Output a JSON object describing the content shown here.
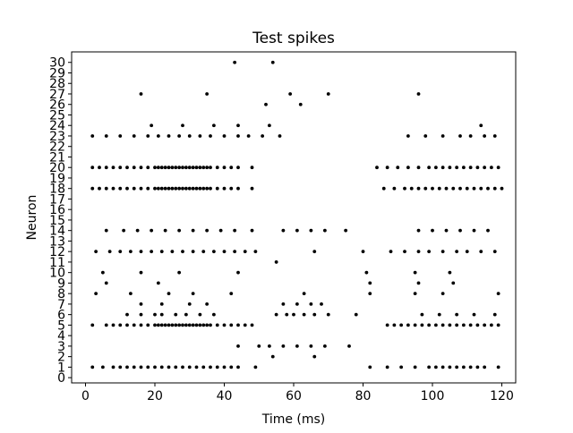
{
  "chart_data": {
    "type": "scatter",
    "title": "Test spikes",
    "xlabel": "Time (ms)",
    "ylabel": "Neuron",
    "xlim": [
      -4,
      124
    ],
    "ylim": [
      -0.5,
      31.0
    ],
    "xticks": [
      0,
      20,
      40,
      60,
      80,
      100,
      120
    ],
    "yticks": [
      0,
      1,
      2,
      3,
      4,
      5,
      6,
      7,
      8,
      9,
      10,
      11,
      12,
      13,
      14,
      15,
      16,
      17,
      18,
      19,
      20,
      21,
      22,
      23,
      24,
      25,
      26,
      27,
      28,
      29,
      30
    ],
    "grid": false,
    "legend": "none",
    "marker_color": "#000000",
    "series": [
      {
        "neuron": 1,
        "times": [
          2,
          5,
          8,
          10,
          12,
          14,
          16,
          18,
          20,
          22,
          24,
          26,
          28,
          30,
          32,
          34,
          36,
          38,
          40,
          42,
          44,
          49,
          95,
          99,
          101,
          103,
          105,
          107,
          109,
          111,
          113,
          115,
          119,
          82,
          87,
          91
        ]
      },
      {
        "neuron": 2,
        "times": [
          54,
          66
        ]
      },
      {
        "neuron": 3,
        "times": [
          44,
          50,
          53,
          57,
          61,
          65,
          69,
          76
        ]
      },
      {
        "neuron": 5,
        "times": [
          2,
          6,
          8,
          10,
          12,
          14,
          16,
          18,
          20,
          21,
          22,
          23,
          24,
          25,
          26,
          27,
          28,
          29,
          30,
          31,
          32,
          33,
          34,
          35,
          36,
          38,
          40,
          42,
          44,
          46,
          48,
          87,
          89,
          91,
          93,
          95,
          97,
          99,
          101,
          103,
          105,
          107,
          109,
          111,
          113,
          115,
          117,
          119
        ]
      },
      {
        "neuron": 6,
        "times": [
          12,
          16,
          20,
          22,
          26,
          29,
          33,
          37,
          55,
          58,
          60,
          63,
          66,
          70,
          78,
          97,
          102,
          107,
          112,
          118
        ]
      },
      {
        "neuron": 7,
        "times": [
          16,
          22,
          30,
          35,
          57,
          61,
          65,
          68
        ]
      },
      {
        "neuron": 8,
        "times": [
          3,
          13,
          24,
          31,
          42,
          63,
          82,
          95,
          103,
          119
        ]
      },
      {
        "neuron": 9,
        "times": [
          6,
          21,
          82,
          96,
          106
        ]
      },
      {
        "neuron": 10,
        "times": [
          5,
          16,
          27,
          44,
          81,
          95,
          105
        ]
      },
      {
        "neuron": 11,
        "times": [
          55
        ]
      },
      {
        "neuron": 12,
        "times": [
          3,
          7,
          10,
          13,
          16,
          19,
          22,
          25,
          28,
          31,
          34,
          37,
          40,
          43,
          46,
          49,
          66,
          80,
          88,
          92,
          96,
          99,
          103,
          107,
          110,
          114,
          118
        ]
      },
      {
        "neuron": 14,
        "times": [
          6,
          11,
          15,
          19,
          23,
          27,
          31,
          35,
          39,
          43,
          48,
          57,
          61,
          65,
          69,
          75,
          96,
          100,
          104,
          108,
          112,
          116
        ]
      },
      {
        "neuron": 18,
        "times": [
          2,
          4,
          6,
          8,
          10,
          12,
          14,
          16,
          18,
          20,
          21,
          22,
          23,
          24,
          25,
          26,
          27,
          28,
          29,
          30,
          31,
          32,
          33,
          34,
          35,
          36,
          38,
          40,
          42,
          44,
          48,
          86,
          89,
          92,
          94,
          96,
          98,
          100,
          102,
          104,
          106,
          108,
          110,
          112,
          114,
          116,
          118,
          120
        ]
      },
      {
        "neuron": 20,
        "times": [
          2,
          4,
          6,
          8,
          10,
          12,
          14,
          16,
          18,
          20,
          21,
          22,
          23,
          24,
          25,
          26,
          27,
          28,
          29,
          30,
          31,
          32,
          33,
          34,
          35,
          36,
          38,
          40,
          42,
          44,
          48,
          84,
          87,
          90,
          93,
          96,
          99,
          101,
          103,
          105,
          107,
          109,
          111,
          113,
          115,
          117,
          119
        ]
      },
      {
        "neuron": 23,
        "times": [
          2,
          6,
          10,
          14,
          18,
          21,
          24,
          27,
          30,
          33,
          36,
          40,
          44,
          47,
          51,
          56,
          93,
          98,
          103,
          108,
          111,
          115,
          118
        ]
      },
      {
        "neuron": 24,
        "times": [
          19,
          28,
          37,
          44,
          53,
          114
        ]
      },
      {
        "neuron": 26,
        "times": [
          52,
          62
        ]
      },
      {
        "neuron": 27,
        "times": [
          16,
          35,
          59,
          70,
          96
        ]
      },
      {
        "neuron": 30,
        "times": [
          43,
          54
        ]
      }
    ]
  }
}
